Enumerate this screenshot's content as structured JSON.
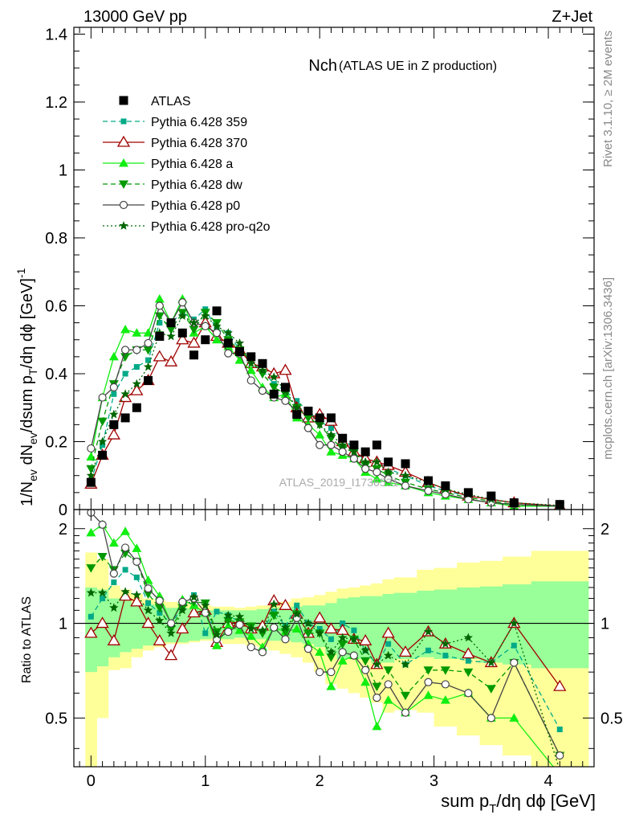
{
  "header": {
    "left": "13000 GeV pp",
    "right": "Z+Jet",
    "side_top": "Rivet 3.1.10, ≥ 2M events",
    "side_bottom": "mcplots.cern.ch [arXiv:1306.3436]",
    "watermark": "ATLAS_2019_I1736531"
  },
  "colors": {
    "atlas": "#000000",
    "p359": "#00aa88",
    "p370": "#a00000",
    "pa": "#11ee11",
    "pdw": "#009900",
    "pp0": "#444444",
    "pq2o": "#006600",
    "band_inner": "#99ff99",
    "band_outer": "#ffff99"
  },
  "chart_data": [
    {
      "type": "line",
      "title": "Nch",
      "subtitle": "(ATLAS UE in Z production)",
      "ylabel": "1/N_ev dN_ev/dsum p_T/dη dϕ [GeV]^-1",
      "xlim": [
        -0.15,
        4.4
      ],
      "ylim": [
        0,
        1.42
      ],
      "yticks": [
        0,
        0.2,
        0.4,
        0.6,
        0.8,
        1,
        1.2,
        1.4
      ],
      "ytick_labels": [
        "0",
        "0.2",
        "0.4",
        "0.6",
        "0.8",
        "1",
        "1.2",
        "1.4"
      ],
      "legend_position": "top-left",
      "x": [
        0,
        0.1,
        0.2,
        0.3,
        0.4,
        0.5,
        0.6,
        0.7,
        0.8,
        0.9,
        1.0,
        1.1,
        1.2,
        1.3,
        1.4,
        1.5,
        1.6,
        1.7,
        1.8,
        1.9,
        2.0,
        2.1,
        2.2,
        2.3,
        2.4,
        2.5,
        2.6,
        2.75,
        2.95,
        3.1,
        3.3,
        3.5,
        3.7,
        4.1
      ],
      "atlas": {
        "name": "ATLAS",
        "values": [
          0.08,
          0.16,
          0.25,
          0.27,
          0.3,
          0.38,
          0.51,
          0.55,
          0.52,
          0.455,
          0.5,
          0.585,
          0.49,
          0.465,
          0.45,
          0.43,
          0.34,
          0.36,
          0.28,
          0.29,
          0.27,
          0.27,
          0.21,
          0.19,
          0.17,
          0.19,
          0.14,
          0.135,
          0.085,
          0.07,
          0.05,
          0.04,
          0.02,
          0.015
        ]
      },
      "series": [
        {
          "name": "Pythia 6.428 359",
          "key": "p359",
          "values": [
            0.085,
            0.19,
            0.34,
            0.4,
            0.42,
            0.44,
            0.55,
            0.55,
            0.58,
            0.56,
            0.59,
            0.53,
            0.52,
            0.47,
            0.44,
            0.41,
            0.37,
            0.35,
            0.32,
            0.29,
            0.26,
            0.24,
            0.21,
            0.18,
            0.14,
            0.14,
            0.12,
            0.1,
            0.07,
            0.055,
            0.04,
            0.03,
            0.02,
            0.01
          ]
        },
        {
          "name": "Pythia 6.428 370",
          "key": "p370",
          "values": [
            0.075,
            0.16,
            0.22,
            0.33,
            0.35,
            0.38,
            0.45,
            0.435,
            0.5,
            0.49,
            0.55,
            0.51,
            0.49,
            0.47,
            0.43,
            0.42,
            0.4,
            0.41,
            0.3,
            0.27,
            0.28,
            0.26,
            0.2,
            0.17,
            0.15,
            0.14,
            0.13,
            0.11,
            0.08,
            0.06,
            0.04,
            0.03,
            0.02,
            0.01
          ]
        },
        {
          "name": "Pythia 6.428 a",
          "key": "pa",
          "values": [
            0.155,
            0.33,
            0.45,
            0.53,
            0.52,
            0.52,
            0.62,
            0.55,
            0.62,
            0.52,
            0.54,
            0.5,
            0.48,
            0.44,
            0.41,
            0.36,
            0.33,
            0.34,
            0.27,
            0.25,
            0.22,
            0.17,
            0.16,
            0.15,
            0.11,
            0.09,
            0.08,
            0.07,
            0.05,
            0.04,
            0.03,
            0.02,
            0.01,
            0.01
          ]
        },
        {
          "name": "Pythia 6.428 dw",
          "key": "pdw",
          "values": [
            0.12,
            0.26,
            0.37,
            0.45,
            0.47,
            0.47,
            0.57,
            0.53,
            0.58,
            0.53,
            0.58,
            0.55,
            0.5,
            0.47,
            0.44,
            0.4,
            0.36,
            0.34,
            0.3,
            0.27,
            0.25,
            0.21,
            0.18,
            0.17,
            0.13,
            0.12,
            0.1,
            0.08,
            0.06,
            0.05,
            0.035,
            0.025,
            0.015,
            0.01
          ]
        },
        {
          "name": "Pythia 6.428 p0",
          "key": "pp0",
          "values": [
            0.18,
            0.33,
            0.36,
            0.47,
            0.47,
            0.49,
            0.6,
            0.55,
            0.61,
            0.55,
            0.54,
            0.52,
            0.46,
            0.46,
            0.38,
            0.35,
            0.33,
            0.32,
            0.29,
            0.24,
            0.19,
            0.19,
            0.17,
            0.15,
            0.12,
            0.11,
            0.09,
            0.07,
            0.055,
            0.045,
            0.03,
            0.02,
            0.015,
            0.01
          ]
        },
        {
          "name": "Pythia 6.428 pro-q2o",
          "key": "pq2o",
          "values": [
            0.1,
            0.2,
            0.28,
            0.34,
            0.37,
            0.42,
            0.52,
            0.51,
            0.57,
            0.55,
            0.57,
            0.54,
            0.52,
            0.49,
            0.43,
            0.41,
            0.39,
            0.35,
            0.3,
            0.29,
            0.25,
            0.22,
            0.19,
            0.17,
            0.14,
            0.14,
            0.11,
            0.1,
            0.08,
            0.06,
            0.045,
            0.03,
            0.02,
            0.012
          ]
        }
      ]
    },
    {
      "type": "line",
      "ylabel": "Ratio to ATLAS",
      "xlabel": "sum p_T/dη dϕ [GeV]",
      "xlim": [
        -0.15,
        4.4
      ],
      "ylim": [
        0.35,
        2.3
      ],
      "log_y": true,
      "yticks": [
        0.5,
        1,
        2
      ],
      "ytick_labels": [
        "0.5",
        "1",
        "2"
      ],
      "xticks": [
        0,
        1,
        2,
        3,
        4
      ],
      "xtick_labels": [
        "0",
        "1",
        "2",
        "3",
        "4"
      ],
      "band_edges": [
        -0.05,
        0.05,
        0.15,
        0.25,
        0.35,
        0.45,
        0.55,
        0.65,
        0.75,
        0.85,
        0.95,
        1.05,
        1.15,
        1.25,
        1.35,
        1.45,
        1.55,
        1.65,
        1.75,
        1.85,
        1.95,
        2.05,
        2.15,
        2.25,
        2.35,
        2.45,
        2.55,
        2.65,
        2.85,
        3.0,
        3.2,
        3.4,
        3.6,
        3.85,
        4.35
      ],
      "band_inner_lo": [
        0.7,
        0.73,
        0.78,
        0.81,
        0.83,
        0.85,
        0.87,
        0.87,
        0.87,
        0.88,
        0.89,
        0.9,
        0.89,
        0.9,
        0.89,
        0.89,
        0.88,
        0.88,
        0.87,
        0.86,
        0.84,
        0.8,
        0.77,
        0.77,
        0.77,
        0.75,
        0.75,
        0.77,
        0.78,
        0.77,
        0.77,
        0.75,
        0.74,
        0.72
      ],
      "band_inner_hi": [
        1.3,
        1.28,
        1.2,
        1.18,
        1.16,
        1.15,
        1.14,
        1.12,
        1.12,
        1.11,
        1.1,
        1.1,
        1.1,
        1.1,
        1.1,
        1.11,
        1.12,
        1.12,
        1.13,
        1.14,
        1.14,
        1.16,
        1.2,
        1.21,
        1.22,
        1.22,
        1.24,
        1.25,
        1.27,
        1.28,
        1.3,
        1.31,
        1.33,
        1.36
      ],
      "band_outer_lo": [
        0.35,
        0.5,
        0.71,
        0.72,
        0.78,
        0.82,
        0.84,
        0.86,
        0.86,
        0.87,
        0.88,
        0.88,
        0.86,
        0.86,
        0.85,
        0.84,
        0.82,
        0.8,
        0.78,
        0.75,
        0.7,
        0.64,
        0.62,
        0.6,
        0.58,
        0.56,
        0.52,
        0.53,
        0.52,
        0.47,
        0.44,
        0.41,
        0.38,
        0.35
      ],
      "band_outer_hi": [
        1.68,
        1.6,
        1.32,
        1.28,
        1.24,
        1.2,
        1.18,
        1.17,
        1.16,
        1.15,
        1.14,
        1.13,
        1.13,
        1.12,
        1.13,
        1.14,
        1.15,
        1.17,
        1.2,
        1.21,
        1.23,
        1.26,
        1.29,
        1.3,
        1.32,
        1.34,
        1.38,
        1.4,
        1.48,
        1.5,
        1.56,
        1.58,
        1.63,
        1.7
      ],
      "series": [
        {
          "name": "Pythia 6.428 359",
          "key": "p359",
          "values": [
            1.05,
            1.2,
            1.35,
            1.48,
            1.4,
            1.16,
            1.08,
            1.0,
            1.12,
            1.23,
            0.93,
            1.09,
            1.06,
            1.01,
            0.98,
            0.95,
            1.09,
            0.98,
            1.14,
            1.0,
            0.96,
            0.89,
            1.0,
            0.95,
            0.82,
            0.74,
            0.86,
            0.74,
            0.82,
            0.79,
            0.76,
            0.75,
            0.85,
            0.46
          ]
        },
        {
          "name": "Pythia 6.428 370",
          "key": "p370",
          "values": [
            0.93,
            1.0,
            0.88,
            1.22,
            1.17,
            1.0,
            0.88,
            0.79,
            0.96,
            1.08,
            1.1,
            0.87,
            1.0,
            1.01,
            0.96,
            0.98,
            1.18,
            1.14,
            1.07,
            0.93,
            1.04,
            0.96,
            0.95,
            0.89,
            0.88,
            0.74,
            0.93,
            0.81,
            0.94,
            0.86,
            0.8,
            0.75,
            1.0,
            0.63
          ]
        },
        {
          "name": "Pythia 6.428 a",
          "key": "pa",
          "values": [
            1.94,
            2.06,
            1.8,
            1.96,
            1.73,
            1.37,
            1.22,
            1.0,
            1.19,
            1.14,
            1.08,
            0.85,
            0.98,
            0.95,
            0.91,
            0.84,
            0.97,
            0.94,
            0.96,
            0.86,
            0.81,
            0.63,
            0.76,
            0.79,
            0.65,
            0.47,
            0.57,
            0.52,
            0.59,
            0.57,
            0.6,
            0.5,
            0.5,
            0.33
          ]
        },
        {
          "name": "Pythia 6.428 dw",
          "key": "pdw",
          "values": [
            1.5,
            1.63,
            1.48,
            1.67,
            1.57,
            1.24,
            1.12,
            0.96,
            1.12,
            1.17,
            1.16,
            0.94,
            1.02,
            1.01,
            0.98,
            0.93,
            1.06,
            0.94,
            1.07,
            0.93,
            0.93,
            0.78,
            0.86,
            0.89,
            0.76,
            0.63,
            0.71,
            0.59,
            0.71,
            0.71,
            0.7,
            0.62,
            0.75,
            0.38
          ]
        },
        {
          "name": "Pythia 6.428 p0",
          "key": "pp0",
          "values": [
            2.25,
            2.06,
            1.44,
            1.74,
            1.57,
            1.29,
            1.18,
            1.0,
            1.17,
            1.2,
            1.08,
            0.89,
            0.94,
            0.99,
            0.84,
            0.81,
            0.97,
            0.89,
            1.04,
            0.83,
            0.7,
            0.7,
            0.81,
            0.79,
            0.71,
            0.58,
            0.64,
            0.52,
            0.65,
            0.64,
            0.6,
            0.5,
            0.75,
            0.38
          ]
        },
        {
          "name": "Pythia 6.428 pro-q2o",
          "key": "pq2o",
          "values": [
            1.25,
            1.25,
            1.12,
            1.26,
            1.23,
            1.1,
            1.02,
            0.93,
            1.1,
            1.21,
            1.14,
            0.92,
            1.06,
            1.05,
            0.96,
            0.95,
            1.15,
            0.97,
            1.07,
            1.0,
            0.93,
            0.81,
            0.9,
            0.89,
            0.82,
            0.74,
            0.79,
            0.74,
            0.94,
            0.86,
            0.9,
            0.75,
            1.0,
            0.34
          ]
        }
      ]
    }
  ]
}
